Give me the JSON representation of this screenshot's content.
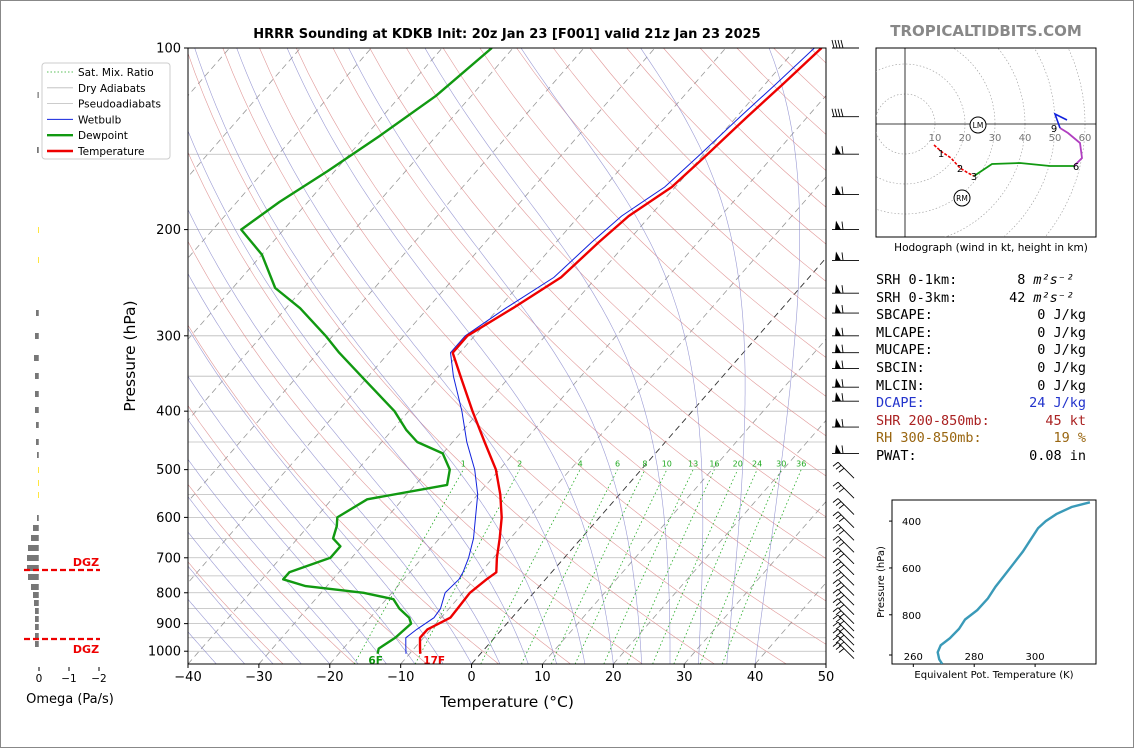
{
  "title": "HRRR Sounding at KDKB Init: 20z Jan 23 [F001] valid 21z Jan 23 2025",
  "watermark": "TROPICALTIDBITS.COM",
  "colors": {
    "temperature": "#ee0000",
    "dewpoint": "#119911",
    "wetbulb": "#1122dd",
    "dry_adiabat": "#d98080",
    "pseudoadiabat": "#8888cc",
    "mixratio": "#22aa22",
    "dcape_text": "#2233cc",
    "shr_text": "#aa2222",
    "rh_text": "#996611",
    "dgz": "#ee0000",
    "theta_e_line": "#3a9ab8"
  },
  "chart_data": [
    {
      "type": "skewt",
      "xlabel": "Temperature (°C)",
      "ylabel": "Pressure (hPa)",
      "xlim": [
        -40,
        50
      ],
      "ylim": [
        1050,
        100
      ],
      "x_ticks": [
        "−40",
        "−30",
        "−20",
        "−10",
        "0",
        "10",
        "20",
        "30",
        "40",
        "50"
      ],
      "x_tick_values": [
        -40,
        -30,
        -20,
        -10,
        0,
        10,
        20,
        30,
        40,
        50
      ],
      "y_ticks": [
        "100",
        "200",
        "300",
        "400",
        "500",
        "600",
        "700",
        "800",
        "900",
        "1000"
      ],
      "y_tick_values": [
        100,
        200,
        300,
        400,
        500,
        600,
        700,
        800,
        900,
        1000
      ],
      "legend": {
        "placement": "top-left",
        "entries": [
          "Sat. Mix. Ratio",
          "Dry Adiabats",
          "Pseudoadiabats",
          "Wetbulb",
          "Dewpoint",
          "Temperature"
        ]
      },
      "mixing_ratio_labels": [
        "1",
        "2",
        "4",
        "6",
        "8",
        "10",
        "13",
        "16",
        "20",
        "24",
        "30",
        "36"
      ],
      "mixing_ratio_values": [
        1,
        2,
        4,
        6,
        8,
        10,
        13,
        16,
        20,
        24,
        30,
        36
      ],
      "surface_dewpoint_label": "6F",
      "surface_temperature_label": "17F",
      "temperature": [
        [
          1010,
          -8.5
        ],
        [
          980,
          -9.5
        ],
        [
          950,
          -10.5
        ],
        [
          920,
          -10.5
        ],
        [
          880,
          -8.7
        ],
        [
          850,
          -8.8
        ],
        [
          800,
          -9.0
        ],
        [
          760,
          -8.3
        ],
        [
          740,
          -7.8
        ],
        [
          700,
          -9.5
        ],
        [
          650,
          -11.5
        ],
        [
          600,
          -13.8
        ],
        [
          550,
          -16.8
        ],
        [
          500,
          -20.5
        ],
        [
          450,
          -25.5
        ],
        [
          400,
          -31
        ],
        [
          350,
          -37
        ],
        [
          320,
          -41
        ],
        [
          300,
          -41
        ],
        [
          270,
          -38
        ],
        [
          240,
          -35
        ],
        [
          210,
          -34
        ],
        [
          190,
          -33
        ],
        [
          170,
          -30.5
        ],
        [
          150,
          -29.5
        ],
        [
          130,
          -28.5
        ],
        [
          115,
          -27.5
        ],
        [
          100,
          -26.5
        ]
      ],
      "dewpoint": [
        [
          1010,
          -14.5
        ],
        [
          990,
          -15
        ],
        [
          950,
          -14
        ],
        [
          900,
          -13.5
        ],
        [
          880,
          -14.5
        ],
        [
          850,
          -17
        ],
        [
          820,
          -19
        ],
        [
          800,
          -24
        ],
        [
          780,
          -33
        ],
        [
          760,
          -37
        ],
        [
          740,
          -37
        ],
        [
          700,
          -33
        ],
        [
          670,
          -33
        ],
        [
          650,
          -35
        ],
        [
          620,
          -36
        ],
        [
          600,
          -37
        ],
        [
          560,
          -35
        ],
        [
          530,
          -25.5
        ],
        [
          500,
          -27
        ],
        [
          470,
          -30
        ],
        [
          450,
          -35
        ],
        [
          430,
          -38
        ],
        [
          400,
          -42
        ],
        [
          350,
          -51
        ],
        [
          320,
          -57
        ],
        [
          300,
          -61
        ],
        [
          270,
          -68
        ],
        [
          250,
          -74
        ],
        [
          220,
          -80
        ],
        [
          200,
          -86
        ],
        [
          180,
          -84
        ],
        [
          160,
          -81
        ],
        [
          140,
          -78
        ],
        [
          120,
          -75
        ],
        [
          100,
          -73
        ]
      ],
      "wetbulb": [
        [
          1010,
          -10.5
        ],
        [
          980,
          -11.5
        ],
        [
          950,
          -12.5
        ],
        [
          920,
          -12.0
        ],
        [
          880,
          -11.0
        ],
        [
          850,
          -11.2
        ],
        [
          800,
          -12.5
        ],
        [
          760,
          -12.2
        ],
        [
          740,
          -12.5
        ],
        [
          700,
          -13.5
        ],
        [
          650,
          -15.2
        ],
        [
          600,
          -17.5
        ],
        [
          550,
          -20.0
        ],
        [
          500,
          -23.5
        ],
        [
          450,
          -28.0
        ],
        [
          400,
          -32.5
        ],
        [
          350,
          -38
        ],
        [
          320,
          -41.3
        ],
        [
          300,
          -41.3
        ],
        [
          270,
          -39
        ],
        [
          240,
          -36
        ],
        [
          210,
          -35
        ],
        [
          190,
          -34
        ],
        [
          170,
          -31.5
        ],
        [
          150,
          -30.5
        ],
        [
          130,
          -29.5
        ],
        [
          115,
          -28.5
        ],
        [
          100,
          -27.5
        ]
      ]
    },
    {
      "type": "hodograph",
      "caption": "Hodograph (wind in kt, height in km)",
      "ring_labels": [
        "10",
        "20",
        "30",
        "40",
        "50",
        "60"
      ],
      "ring_values": [
        10,
        20,
        30,
        40,
        50,
        60
      ],
      "motion_markers": [
        "LM",
        "RM"
      ],
      "height_labels": [
        "1",
        "2",
        "3",
        "6",
        "9"
      ]
    },
    {
      "type": "line",
      "ylabel": "Pressure (hPa)",
      "xlabel": "Equivalent Pot. Temperature (K)",
      "x_ticks": [
        "260",
        "280",
        "300"
      ],
      "x_tick_values": [
        260,
        280,
        300
      ],
      "y_ticks": [
        "400",
        "600",
        "800"
      ],
      "y_tick_values": [
        400,
        600,
        800
      ],
      "xlim": [
        253,
        320
      ],
      "ylim": [
        1010,
        310
      ],
      "values": [
        [
          1010,
          269.5
        ],
        [
          990,
          268.5
        ],
        [
          960,
          268.0
        ],
        [
          930,
          269.0
        ],
        [
          900,
          272.0
        ],
        [
          860,
          275.0
        ],
        [
          820,
          277.0
        ],
        [
          780,
          281.0
        ],
        [
          730,
          284.5
        ],
        [
          680,
          287.0
        ],
        [
          630,
          290.0
        ],
        [
          580,
          293.0
        ],
        [
          530,
          296.0
        ],
        [
          480,
          298.5
        ],
        [
          430,
          301.0
        ],
        [
          400,
          303.5
        ],
        [
          370,
          307.0
        ],
        [
          340,
          312.0
        ],
        [
          320,
          318.0
        ]
      ]
    },
    {
      "type": "bar",
      "xlabel": "Omega (Pa/s)",
      "x_ticks": [
        "0",
        "−1",
        "−2"
      ],
      "dgz_label": "DGZ",
      "dgz_levels": [
        735,
        960
      ]
    }
  ],
  "stats": [
    {
      "label": "SRH 0-1km:",
      "value": "8",
      "unit": "m²s⁻²",
      "color": "#000000"
    },
    {
      "label": "SRH 0-3km:",
      "value": "42",
      "unit": "m²s⁻²",
      "color": "#000000"
    },
    {
      "label": "SBCAPE:",
      "value": "0 J/kg",
      "unit": "",
      "color": "#000000"
    },
    {
      "label": "MLCAPE:",
      "value": "0 J/kg",
      "unit": "",
      "color": "#000000"
    },
    {
      "label": "MUCAPE:",
      "value": "0 J/kg",
      "unit": "",
      "color": "#000000"
    },
    {
      "label": "SBCIN:",
      "value": "0 J/kg",
      "unit": "",
      "color": "#000000"
    },
    {
      "label": "MLCIN:",
      "value": "0 J/kg",
      "unit": "",
      "color": "#000000"
    },
    {
      "label": "DCAPE:",
      "value": "24 J/kg",
      "unit": "",
      "color": "#2233cc"
    },
    {
      "label": "SHR 200-850mb:",
      "value": "45 kt",
      "unit": "",
      "color": "#aa2222"
    },
    {
      "label": "RH 300-850mb:",
      "value": "19 %",
      "unit": "",
      "color": "#996611"
    },
    {
      "label": "PWAT:",
      "value": "0.08 in",
      "unit": "",
      "color": "#000000"
    }
  ]
}
